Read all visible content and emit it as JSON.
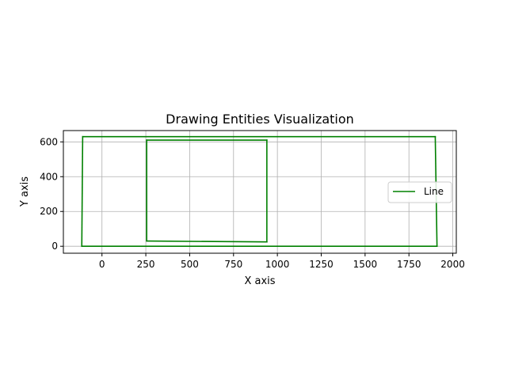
{
  "chart_data": {
    "type": "line",
    "title": "Drawing Entities Visualization",
    "xlabel": "X axis",
    "ylabel": "Y axis",
    "xlim": [
      -220,
      2020
    ],
    "ylim": [
      -40,
      665
    ],
    "x_ticks": [
      0,
      250,
      500,
      750,
      1000,
      1250,
      1500,
      1750,
      2000
    ],
    "y_ticks": [
      0,
      200,
      400,
      600
    ],
    "grid": true,
    "legend": {
      "placement": "center-right",
      "entries": [
        "Line"
      ]
    },
    "line_color": "#008000",
    "segments": [
      {
        "x": [
          -110,
          1900
        ],
        "y": [
          630,
          630
        ]
      },
      {
        "x": [
          1900,
          1910
        ],
        "y": [
          630,
          0
        ]
      },
      {
        "x": [
          1910,
          -115
        ],
        "y": [
          0,
          0
        ]
      },
      {
        "x": [
          -115,
          -110
        ],
        "y": [
          0,
          630
        ]
      },
      {
        "x": [
          255,
          940
        ],
        "y": [
          610,
          610
        ]
      },
      {
        "x": [
          940,
          940
        ],
        "y": [
          610,
          25
        ]
      },
      {
        "x": [
          940,
          255
        ],
        "y": [
          25,
          30
        ]
      },
      {
        "x": [
          255,
          255
        ],
        "y": [
          30,
          610
        ]
      }
    ]
  }
}
